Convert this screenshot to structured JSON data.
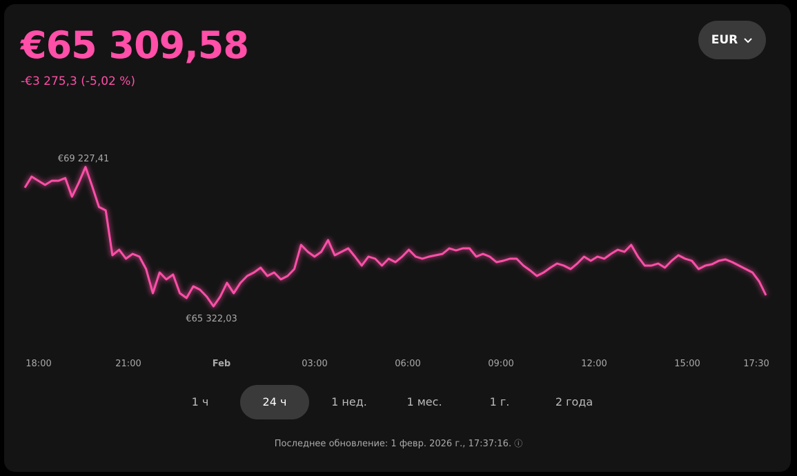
{
  "header": {
    "price": "€65 309,58",
    "change": "-€3 275,3 (-5,02 %)",
    "currency": "EUR"
  },
  "chart_data": {
    "type": "line",
    "color": "#ff4fa8",
    "values": [
      68647,
      68956,
      68840,
      68724,
      68840,
      68840,
      68917,
      68395,
      68782,
      69227.41,
      68685,
      68106,
      68009,
      66752,
      66907,
      66656,
      66791,
      66714,
      66366,
      65689,
      66269,
      66076,
      66211,
      65689,
      65554,
      65883,
      65786,
      65593,
      65322.03,
      65593,
      65979,
      65689,
      65979,
      66173,
      66269,
      66404,
      66173,
      66269,
      66076,
      66173,
      66366,
      67042,
      66849,
      66714,
      66849,
      67178,
      66752,
      66849,
      66946,
      66714,
      66462,
      66714,
      66656,
      66462,
      66656,
      66559,
      66714,
      66907,
      66714,
      66656,
      66714,
      66752,
      66791,
      66946,
      66888,
      66946,
      66946,
      66714,
      66791,
      66714,
      66559,
      66598,
      66656,
      66656,
      66462,
      66327,
      66173,
      66269,
      66404,
      66520,
      66462,
      66366,
      66520,
      66714,
      66598,
      66714,
      66656,
      66791,
      66907,
      66849,
      67042,
      66714,
      66462,
      66462,
      66520,
      66404,
      66598,
      66752,
      66656,
      66598,
      66366,
      66462,
      66501,
      66598,
      66636,
      66559,
      66462,
      66366,
      66269,
      66018,
      65631
    ],
    "max_label": "€69 227,41",
    "min_label": "€65 322,03",
    "x_labels": [
      "18:00",
      "21:00",
      "Feb",
      "03:00",
      "06:00",
      "09:00",
      "12:00",
      "15:00",
      "17:30"
    ]
  },
  "ranges": {
    "options": [
      "1 ч",
      "24 ч",
      "1 нед.",
      "1 мес.",
      "1 г.",
      "2 года"
    ],
    "selected": "24 ч"
  },
  "footer": {
    "updated": "Последнее обновление: 1 февр. 2026 г., 17:37:16."
  }
}
